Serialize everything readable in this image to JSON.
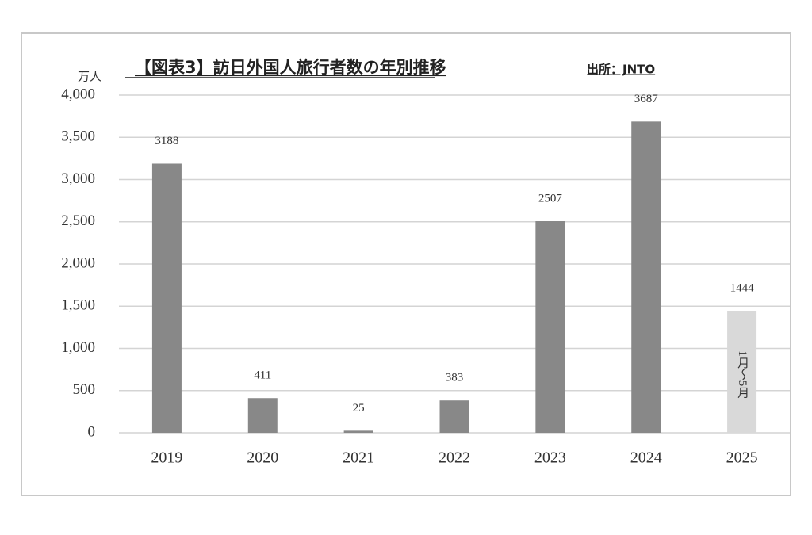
{
  "chart_data": {
    "type": "bar",
    "title": "【図表3】訪日外国人旅行者数の年別推移",
    "source": "出所：JNTO",
    "y_label": "万人",
    "categories": [
      "2019",
      "2020",
      "2021",
      "2022",
      "2023",
      "2024",
      "2025"
    ],
    "values": [
      3188,
      411,
      25,
      383,
      2507,
      3687,
      1444
    ],
    "colors": [
      "#888888",
      "#888888",
      "#888888",
      "#888888",
      "#888888",
      "#888888",
      "#d9d9d9"
    ],
    "annotation": "1月～5月",
    "ylim": [
      0,
      4000
    ],
    "yticks": [
      0,
      500,
      {
        "value": 1000,
        "label": "1,000"
      },
      {
        "value": 1500,
        "label": "1,500"
      },
      {
        "value": 2000,
        "label": "2,000"
      },
      {
        "value": 2500,
        "label": "2,500"
      },
      {
        "value": 3000,
        "label": "3,000"
      },
      {
        "value": 3500,
        "label": "3,500"
      },
      {
        "value": 4000,
        "label": "4,000"
      }
    ],
    "grid": true
  }
}
